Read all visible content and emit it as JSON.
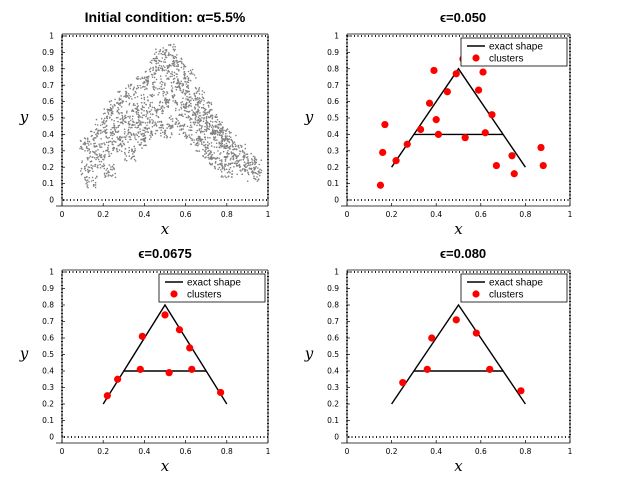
{
  "chart_data": [
    {
      "type": "scatter",
      "title": "Initial condition: α=5.5%",
      "xlabel": "x",
      "ylabel": "y",
      "xlim": [
        0,
        1
      ],
      "ylim": [
        0,
        1
      ],
      "xticks": [
        "0",
        "0.2",
        "0.4",
        "0.6",
        "0.8",
        "1"
      ],
      "yticks": [
        "0",
        "0.1",
        "0.2",
        "0.3",
        "0.4",
        "0.5",
        "0.6",
        "0.7",
        "0.8",
        "0.9",
        "1"
      ],
      "marker_color": "#808080",
      "series": [
        {
          "name": "particles",
          "points": [
            [
              0.1,
              0.34
            ],
            [
              0.12,
              0.2
            ],
            [
              0.14,
              0.1
            ],
            [
              0.15,
              0.29
            ],
            [
              0.16,
              0.38
            ],
            [
              0.18,
              0.24
            ],
            [
              0.19,
              0.45
            ],
            [
              0.21,
              0.31
            ],
            [
              0.22,
              0.52
            ],
            [
              0.23,
              0.18
            ],
            [
              0.24,
              0.4
            ],
            [
              0.26,
              0.57
            ],
            [
              0.27,
              0.34
            ],
            [
              0.28,
              0.46
            ],
            [
              0.3,
              0.62
            ],
            [
              0.31,
              0.38
            ],
            [
              0.32,
              0.5
            ],
            [
              0.33,
              0.28
            ],
            [
              0.34,
              0.66
            ],
            [
              0.35,
              0.44
            ],
            [
              0.37,
              0.55
            ],
            [
              0.38,
              0.36
            ],
            [
              0.39,
              0.71
            ],
            [
              0.4,
              0.48
            ],
            [
              0.41,
              0.6
            ],
            [
              0.42,
              0.4
            ],
            [
              0.43,
              0.75
            ],
            [
              0.44,
              0.52
            ],
            [
              0.45,
              0.82
            ],
            [
              0.46,
              0.44
            ],
            [
              0.47,
              0.68
            ],
            [
              0.48,
              0.88
            ],
            [
              0.49,
              0.57
            ],
            [
              0.5,
              0.78
            ],
            [
              0.51,
              0.42
            ],
            [
              0.52,
              0.92
            ],
            [
              0.53,
              0.63
            ],
            [
              0.54,
              0.8
            ],
            [
              0.55,
              0.48
            ],
            [
              0.56,
              0.71
            ],
            [
              0.57,
              0.84
            ],
            [
              0.58,
              0.55
            ],
            [
              0.59,
              0.68
            ],
            [
              0.6,
              0.42
            ],
            [
              0.61,
              0.62
            ],
            [
              0.62,
              0.76
            ],
            [
              0.63,
              0.5
            ],
            [
              0.64,
              0.58
            ],
            [
              0.65,
              0.38
            ],
            [
              0.66,
              0.52
            ],
            [
              0.67,
              0.64
            ],
            [
              0.68,
              0.34
            ],
            [
              0.69,
              0.46
            ],
            [
              0.7,
              0.56
            ],
            [
              0.71,
              0.3
            ],
            [
              0.72,
              0.42
            ],
            [
              0.73,
              0.5
            ],
            [
              0.74,
              0.26
            ],
            [
              0.75,
              0.38
            ],
            [
              0.76,
              0.44
            ],
            [
              0.77,
              0.22
            ],
            [
              0.78,
              0.33
            ],
            [
              0.79,
              0.4
            ],
            [
              0.8,
              0.18
            ],
            [
              0.81,
              0.29
            ],
            [
              0.82,
              0.35
            ],
            [
              0.84,
              0.24
            ],
            [
              0.86,
              0.3
            ],
            [
              0.88,
              0.2
            ],
            [
              0.91,
              0.24
            ],
            [
              0.93,
              0.15
            ],
            [
              0.95,
              0.21
            ]
          ]
        }
      ]
    },
    {
      "type": "scatter",
      "title": "ϵ=0.050",
      "xlabel": "x",
      "ylabel": "y",
      "xlim": [
        0,
        1
      ],
      "ylim": [
        0,
        1
      ],
      "xticks": [
        "0",
        "0.2",
        "0.4",
        "0.6",
        "0.8",
        "1"
      ],
      "yticks": [
        "0",
        "0.1",
        "0.2",
        "0.3",
        "0.4",
        "0.5",
        "0.6",
        "0.7",
        "0.8",
        "0.9",
        "1"
      ],
      "legend": [
        "exact shape",
        "clusters"
      ],
      "shape_color": "#000000",
      "cluster_color": "#ff0000",
      "exact_shape": {
        "apex": [
          0.5,
          0.8
        ],
        "left_foot": [
          0.2,
          0.2
        ],
        "right_foot": [
          0.8,
          0.2
        ],
        "crossbar": [
          [
            0.3,
            0.4
          ],
          [
            0.7,
            0.4
          ]
        ]
      },
      "clusters": [
        [
          0.15,
          0.09
        ],
        [
          0.16,
          0.29
        ],
        [
          0.17,
          0.46
        ],
        [
          0.22,
          0.24
        ],
        [
          0.27,
          0.34
        ],
        [
          0.33,
          0.43
        ],
        [
          0.37,
          0.59
        ],
        [
          0.39,
          0.79
        ],
        [
          0.4,
          0.49
        ],
        [
          0.41,
          0.4
        ],
        [
          0.45,
          0.66
        ],
        [
          0.49,
          0.77
        ],
        [
          0.52,
          0.86
        ],
        [
          0.53,
          0.38
        ],
        [
          0.59,
          0.67
        ],
        [
          0.61,
          0.78
        ],
        [
          0.62,
          0.41
        ],
        [
          0.65,
          0.52
        ],
        [
          0.67,
          0.21
        ],
        [
          0.74,
          0.27
        ],
        [
          0.75,
          0.16
        ],
        [
          0.87,
          0.32
        ],
        [
          0.88,
          0.21
        ]
      ]
    },
    {
      "type": "scatter",
      "title": "ϵ=0.0675",
      "xlabel": "x",
      "ylabel": "y",
      "xlim": [
        0,
        1
      ],
      "ylim": [
        0,
        1
      ],
      "xticks": [
        "0",
        "0.2",
        "0.4",
        "0.6",
        "0.8",
        "1"
      ],
      "yticks": [
        "0",
        "0.1",
        "0.2",
        "0.3",
        "0.4",
        "0.5",
        "0.6",
        "0.7",
        "0.8",
        "0.9",
        "1"
      ],
      "legend": [
        "exact shape",
        "clusters"
      ],
      "shape_color": "#000000",
      "cluster_color": "#ff0000",
      "exact_shape": {
        "apex": [
          0.5,
          0.8
        ],
        "left_foot": [
          0.2,
          0.2
        ],
        "right_foot": [
          0.8,
          0.2
        ],
        "crossbar": [
          [
            0.3,
            0.4
          ],
          [
            0.7,
            0.4
          ]
        ]
      },
      "clusters": [
        [
          0.22,
          0.25
        ],
        [
          0.27,
          0.35
        ],
        [
          0.38,
          0.41
        ],
        [
          0.39,
          0.61
        ],
        [
          0.5,
          0.74
        ],
        [
          0.52,
          0.39
        ],
        [
          0.57,
          0.65
        ],
        [
          0.62,
          0.54
        ],
        [
          0.63,
          0.41
        ],
        [
          0.77,
          0.27
        ]
      ]
    },
    {
      "type": "scatter",
      "title": "ϵ=0.080",
      "xlabel": "x",
      "ylabel": "y",
      "xlim": [
        0,
        1
      ],
      "ylim": [
        0,
        1
      ],
      "xticks": [
        "0",
        "0.2",
        "0.4",
        "0.6",
        "0.8",
        "1"
      ],
      "yticks": [
        "0",
        "0.1",
        "0.2",
        "0.3",
        "0.4",
        "0.5",
        "0.6",
        "0.7",
        "0.8",
        "0.9",
        "1"
      ],
      "legend": [
        "exact shape",
        "clusters"
      ],
      "shape_color": "#000000",
      "cluster_color": "#ff0000",
      "exact_shape": {
        "apex": [
          0.5,
          0.8
        ],
        "left_foot": [
          0.2,
          0.2
        ],
        "right_foot": [
          0.8,
          0.2
        ],
        "crossbar": [
          [
            0.3,
            0.4
          ],
          [
            0.7,
            0.4
          ]
        ]
      },
      "clusters": [
        [
          0.25,
          0.33
        ],
        [
          0.36,
          0.41
        ],
        [
          0.38,
          0.6
        ],
        [
          0.49,
          0.71
        ],
        [
          0.58,
          0.63
        ],
        [
          0.64,
          0.41
        ],
        [
          0.78,
          0.28
        ]
      ]
    }
  ]
}
